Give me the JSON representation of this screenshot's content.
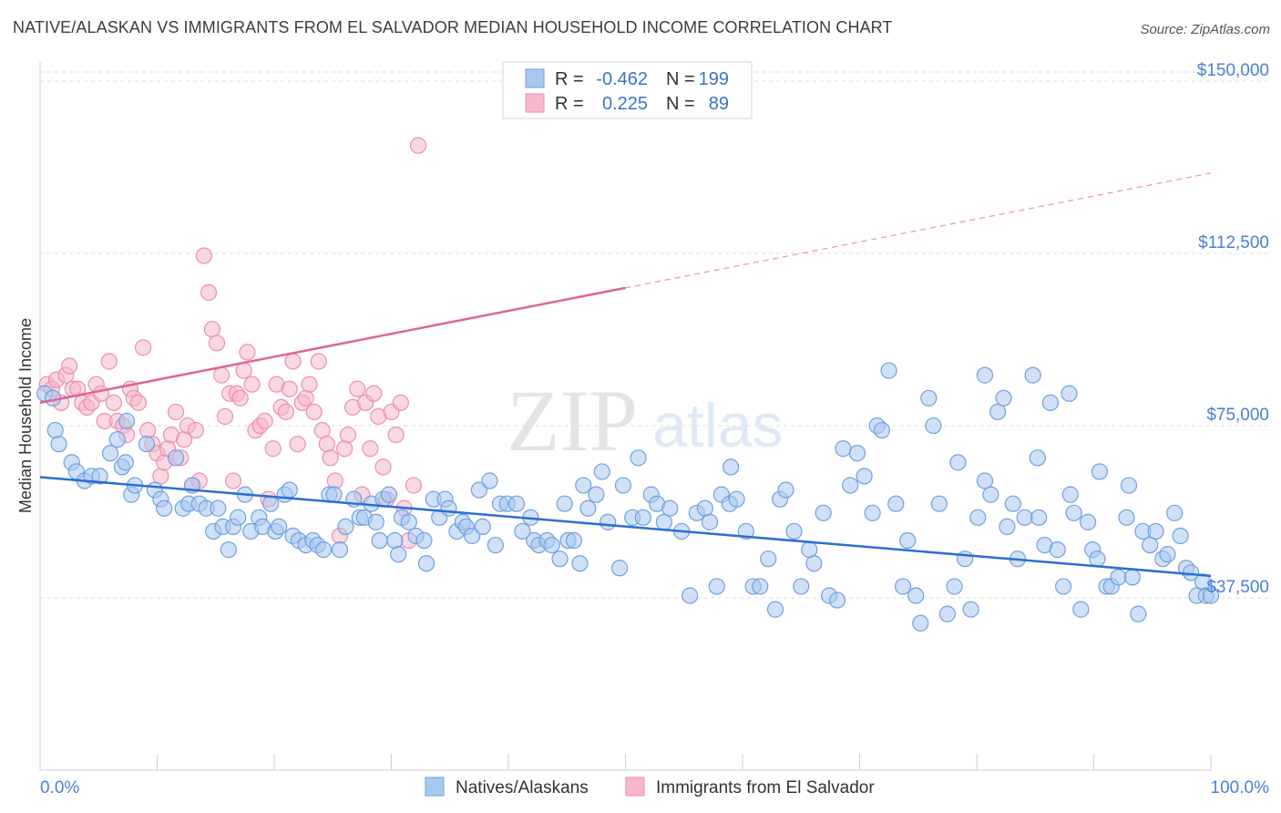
{
  "title": "NATIVE/ALASKAN VS IMMIGRANTS FROM EL SALVADOR MEDIAN HOUSEHOLD INCOME CORRELATION CHART",
  "source": "Source: ZipAtlas.com",
  "watermark": {
    "zip": "ZIP",
    "atlas": "atlas"
  },
  "legend_box": {
    "rows": [
      {
        "r_label": "R =",
        "r_value": "-0.462",
        "n_label": "N =",
        "n_value": "199"
      },
      {
        "r_label": "R =",
        "r_value": "0.225",
        "n_label": "N =",
        "n_value": "89"
      }
    ]
  },
  "colors": {
    "blue_fill": "#a9c8f0",
    "blue_stroke": "#6f9fe0",
    "blue_line": "#2e6fd0",
    "pink_fill": "#f6b8cb",
    "pink_stroke": "#ec8fae",
    "pink_line": "#e0648f",
    "tick_text": "#4a7fd0",
    "grid": "#dddddd"
  },
  "chart_data": {
    "type": "scatter",
    "title": "NATIVE/ALASKAN VS IMMIGRANTS FROM EL SALVADOR MEDIAN HOUSEHOLD INCOME CORRELATION CHART",
    "xlabel": "",
    "ylabel": "Median Household Income",
    "x_tick_labels": [
      "0.0%",
      "100.0%"
    ],
    "y_tick_labels": [
      "$150,000",
      "$112,500",
      "$75,000",
      "$37,500"
    ],
    "y_tick_values": [
      150000,
      112500,
      75000,
      37500
    ],
    "xlim": [
      0,
      100
    ],
    "ylim": [
      0,
      152000
    ],
    "grid": true,
    "legend_position": "top-center",
    "series": [
      {
        "name": "Natives/Alaskans",
        "color": "#6f9fe0",
        "r": -0.462,
        "n": 199,
        "trend": {
          "x": [
            0,
            100
          ],
          "y": [
            63800,
            42300
          ],
          "dashed_from": null
        },
        "points": [
          [
            0.4,
            82
          ],
          [
            1.1,
            81
          ],
          [
            1.3,
            74
          ],
          [
            1.6,
            71
          ],
          [
            2.7,
            67
          ],
          [
            3.1,
            65
          ],
          [
            3.8,
            63
          ],
          [
            4.4,
            64
          ],
          [
            5.1,
            64
          ],
          [
            6.0,
            69
          ],
          [
            6.6,
            72
          ],
          [
            7.0,
            66
          ],
          [
            7.3,
            67
          ],
          [
            7.4,
            76
          ],
          [
            7.8,
            60
          ],
          [
            8.1,
            62
          ],
          [
            9.1,
            71
          ],
          [
            9.8,
            61
          ],
          [
            10.3,
            59
          ],
          [
            10.6,
            57
          ],
          [
            11.6,
            68
          ],
          [
            12.2,
            57
          ],
          [
            12.7,
            58
          ],
          [
            13.0,
            62
          ],
          [
            13.6,
            58
          ],
          [
            14.2,
            57
          ],
          [
            14.8,
            52
          ],
          [
            15.2,
            57
          ],
          [
            15.6,
            53
          ],
          [
            16.1,
            48
          ],
          [
            16.5,
            53
          ],
          [
            16.9,
            55
          ],
          [
            17.5,
            60
          ],
          [
            18.0,
            52
          ],
          [
            18.7,
            55
          ],
          [
            19.0,
            53
          ],
          [
            19.7,
            58
          ],
          [
            20.1,
            52
          ],
          [
            20.4,
            53
          ],
          [
            20.9,
            60
          ],
          [
            21.3,
            61
          ],
          [
            21.6,
            51
          ],
          [
            22.1,
            50
          ],
          [
            22.7,
            49
          ],
          [
            23.3,
            50
          ],
          [
            23.7,
            49
          ],
          [
            24.2,
            48
          ],
          [
            24.7,
            60
          ],
          [
            25.1,
            60
          ],
          [
            25.6,
            48
          ],
          [
            26.1,
            53
          ],
          [
            26.8,
            59
          ],
          [
            27.3,
            55
          ],
          [
            27.7,
            55
          ],
          [
            28.3,
            58
          ],
          [
            28.7,
            54
          ],
          [
            29.0,
            50
          ],
          [
            29.3,
            59
          ],
          [
            29.8,
            60
          ],
          [
            30.3,
            50
          ],
          [
            30.6,
            47
          ],
          [
            30.9,
            55
          ],
          [
            31.5,
            54
          ],
          [
            32.1,
            51
          ],
          [
            32.8,
            50
          ],
          [
            33.0,
            45
          ],
          [
            33.6,
            59
          ],
          [
            34.1,
            55
          ],
          [
            34.6,
            59
          ],
          [
            34.9,
            57
          ],
          [
            35.6,
            52
          ],
          [
            36.1,
            54
          ],
          [
            36.4,
            53
          ],
          [
            36.9,
            51
          ],
          [
            37.5,
            61
          ],
          [
            37.8,
            53
          ],
          [
            38.4,
            63
          ],
          [
            38.9,
            49
          ],
          [
            39.3,
            58
          ],
          [
            39.9,
            58
          ],
          [
            40.7,
            58
          ],
          [
            41.2,
            52
          ],
          [
            41.9,
            55
          ],
          [
            42.2,
            50
          ],
          [
            42.6,
            49
          ],
          [
            43.3,
            50
          ],
          [
            43.7,
            49
          ],
          [
            44.4,
            46
          ],
          [
            44.8,
            58
          ],
          [
            45.1,
            50
          ],
          [
            45.6,
            50
          ],
          [
            46.4,
            62
          ],
          [
            46.8,
            57
          ],
          [
            47.5,
            60
          ],
          [
            48.0,
            65
          ],
          [
            48.5,
            54
          ],
          [
            49.5,
            44
          ],
          [
            49.8,
            62
          ],
          [
            50.6,
            55
          ],
          [
            51.1,
            68
          ],
          [
            51.5,
            55
          ],
          [
            52.2,
            60
          ],
          [
            52.7,
            58
          ],
          [
            53.3,
            54
          ],
          [
            53.8,
            57
          ],
          [
            54.8,
            52
          ],
          [
            55.5,
            38
          ],
          [
            56.1,
            56
          ],
          [
            56.8,
            57
          ],
          [
            57.2,
            54
          ],
          [
            57.8,
            40
          ],
          [
            58.2,
            60
          ],
          [
            58.9,
            58
          ],
          [
            59.5,
            59
          ],
          [
            60.3,
            52
          ],
          [
            60.9,
            40
          ],
          [
            61.5,
            40
          ],
          [
            62.2,
            46
          ],
          [
            62.8,
            35
          ],
          [
            63.2,
            59
          ],
          [
            63.7,
            61
          ],
          [
            64.4,
            52
          ],
          [
            65.0,
            40
          ],
          [
            65.7,
            48
          ],
          [
            66.1,
            45
          ],
          [
            66.9,
            56
          ],
          [
            67.4,
            38
          ],
          [
            68.1,
            37
          ],
          [
            68.6,
            70
          ],
          [
            69.2,
            62
          ],
          [
            69.8,
            69
          ],
          [
            70.4,
            64
          ],
          [
            71.1,
            56
          ],
          [
            71.5,
            75
          ],
          [
            71.9,
            74
          ],
          [
            72.5,
            87
          ],
          [
            73.1,
            58
          ],
          [
            73.7,
            40
          ],
          [
            74.1,
            50
          ],
          [
            74.8,
            38
          ],
          [
            75.2,
            32
          ],
          [
            75.9,
            81
          ],
          [
            76.3,
            75
          ],
          [
            76.8,
            58
          ],
          [
            77.5,
            34
          ],
          [
            78.1,
            40
          ],
          [
            78.4,
            67
          ],
          [
            79.0,
            46
          ],
          [
            79.5,
            35
          ],
          [
            80.1,
            55
          ],
          [
            80.7,
            86
          ],
          [
            81.2,
            60
          ],
          [
            81.8,
            78
          ],
          [
            82.3,
            81
          ],
          [
            82.6,
            53
          ],
          [
            83.1,
            58
          ],
          [
            83.5,
            46
          ],
          [
            84.1,
            55
          ],
          [
            84.8,
            86
          ],
          [
            85.3,
            55
          ],
          [
            85.8,
            49
          ],
          [
            86.3,
            80
          ],
          [
            86.9,
            48
          ],
          [
            87.4,
            40
          ],
          [
            87.9,
            82
          ],
          [
            88.3,
            56
          ],
          [
            88.9,
            35
          ],
          [
            89.5,
            54
          ],
          [
            89.9,
            48
          ],
          [
            90.5,
            65
          ],
          [
            91.1,
            40
          ],
          [
            91.5,
            40
          ],
          [
            92.1,
            42
          ],
          [
            92.8,
            55
          ],
          [
            93.3,
            42
          ],
          [
            93.8,
            34
          ],
          [
            94.2,
            52
          ],
          [
            94.8,
            49
          ],
          [
            95.3,
            52
          ],
          [
            95.9,
            46
          ],
          [
            96.3,
            47
          ],
          [
            96.9,
            56
          ],
          [
            97.4,
            51
          ],
          [
            97.9,
            44
          ],
          [
            98.3,
            43
          ],
          [
            98.8,
            38
          ],
          [
            99.3,
            41
          ],
          [
            99.6,
            38
          ],
          [
            100.0,
            38
          ],
          [
            46.1,
            45
          ],
          [
            59.0,
            66
          ],
          [
            80.7,
            63
          ],
          [
            90.3,
            46
          ],
          [
            85.2,
            68
          ],
          [
            93.0,
            62
          ],
          [
            88.0,
            60
          ]
        ]
      },
      {
        "name": "Immigrants from El Salvador",
        "color": "#ec8fae",
        "r": 0.225,
        "n": 89,
        "trend": {
          "x": [
            0,
            100
          ],
          "y": [
            80000,
            130000
          ],
          "dashed_from": 50
        },
        "points": [
          [
            0.6,
            84
          ],
          [
            1.0,
            83
          ],
          [
            1.4,
            85
          ],
          [
            1.8,
            80
          ],
          [
            2.2,
            86
          ],
          [
            2.5,
            88
          ],
          [
            2.8,
            83
          ],
          [
            3.2,
            83
          ],
          [
            3.6,
            80
          ],
          [
            4.0,
            79
          ],
          [
            4.4,
            80
          ],
          [
            4.8,
            84
          ],
          [
            5.2,
            82
          ],
          [
            5.5,
            76
          ],
          [
            5.9,
            89
          ],
          [
            6.3,
            80
          ],
          [
            6.6,
            76
          ],
          [
            7.1,
            75
          ],
          [
            7.4,
            73
          ],
          [
            7.7,
            83
          ],
          [
            8.0,
            81
          ],
          [
            8.4,
            80
          ],
          [
            8.8,
            92
          ],
          [
            9.2,
            74
          ],
          [
            9.6,
            71
          ],
          [
            10.0,
            69
          ],
          [
            10.3,
            64
          ],
          [
            10.6,
            67
          ],
          [
            10.9,
            70
          ],
          [
            11.2,
            73
          ],
          [
            11.6,
            78
          ],
          [
            12.0,
            68
          ],
          [
            12.3,
            72
          ],
          [
            12.6,
            75
          ],
          [
            13.0,
            62
          ],
          [
            13.3,
            74
          ],
          [
            13.6,
            63
          ],
          [
            14.0,
            112
          ],
          [
            14.4,
            104
          ],
          [
            14.7,
            96
          ],
          [
            15.1,
            93
          ],
          [
            15.5,
            86
          ],
          [
            15.8,
            77
          ],
          [
            16.2,
            82
          ],
          [
            16.5,
            63
          ],
          [
            16.8,
            82
          ],
          [
            17.1,
            81
          ],
          [
            17.4,
            87
          ],
          [
            17.7,
            91
          ],
          [
            18.1,
            84
          ],
          [
            18.4,
            74
          ],
          [
            18.8,
            75
          ],
          [
            19.2,
            76
          ],
          [
            19.5,
            59
          ],
          [
            19.9,
            70
          ],
          [
            20.2,
            84
          ],
          [
            20.6,
            79
          ],
          [
            21.0,
            78
          ],
          [
            21.3,
            83
          ],
          [
            21.6,
            89
          ],
          [
            22.0,
            71
          ],
          [
            22.4,
            80
          ],
          [
            22.7,
            81
          ],
          [
            23.0,
            84
          ],
          [
            23.4,
            78
          ],
          [
            23.8,
            89
          ],
          [
            24.1,
            74
          ],
          [
            24.5,
            71
          ],
          [
            24.8,
            68
          ],
          [
            25.2,
            63
          ],
          [
            25.6,
            51
          ],
          [
            26.0,
            70
          ],
          [
            26.3,
            73
          ],
          [
            26.7,
            79
          ],
          [
            27.1,
            83
          ],
          [
            27.5,
            60
          ],
          [
            27.8,
            80
          ],
          [
            28.2,
            70
          ],
          [
            28.5,
            82
          ],
          [
            28.9,
            77
          ],
          [
            29.3,
            66
          ],
          [
            29.6,
            59
          ],
          [
            30.0,
            78
          ],
          [
            30.4,
            73
          ],
          [
            30.8,
            80
          ],
          [
            31.1,
            57
          ],
          [
            31.5,
            50
          ],
          [
            31.9,
            62
          ],
          [
            32.3,
            136
          ]
        ]
      }
    ]
  },
  "bottom_legend": [
    {
      "label": "Natives/Alaskans"
    },
    {
      "label": "Immigrants from El Salvador"
    }
  ]
}
